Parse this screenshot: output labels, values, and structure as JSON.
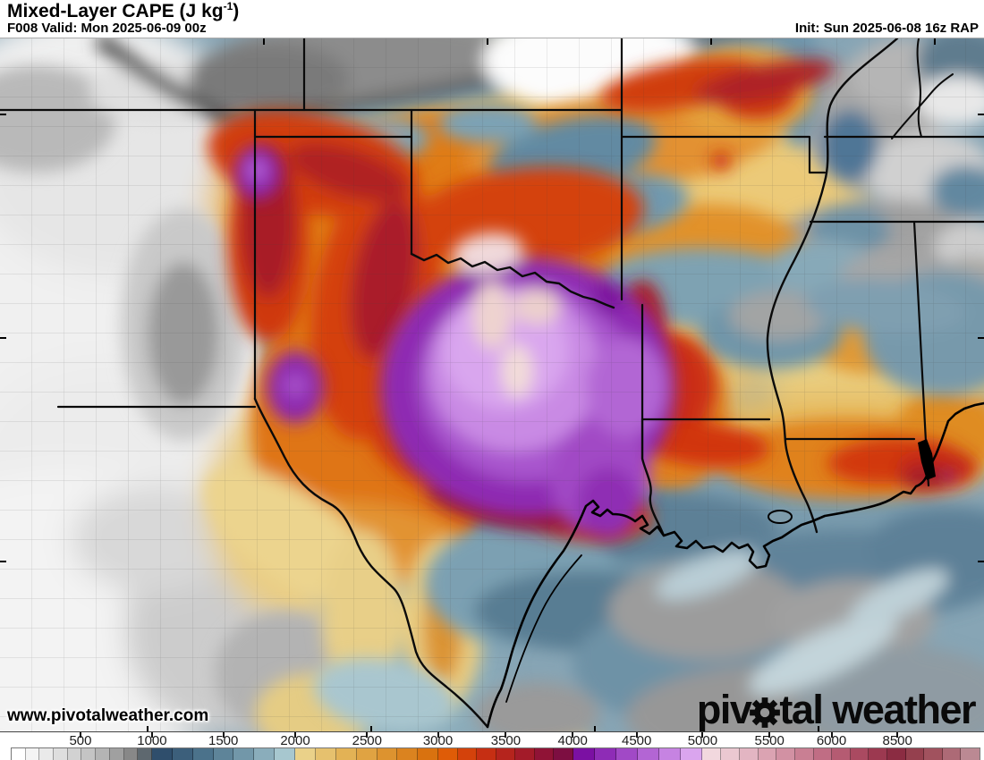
{
  "header": {
    "title_prefix": "Mixed-Layer CAPE (J kg",
    "title_exponent": "-1",
    "title_suffix": ")",
    "valid_label": "F008 Valid: Mon 2025-06-09 00z",
    "init_label": "Init: Sun 2025-06-08 16z RAP"
  },
  "watermark": "www.pivotalweather.com",
  "logo": {
    "text_before_gear": "piv",
    "text_after_gear": "tal weather"
  },
  "map": {
    "description": "Filled mixed-layer CAPE contours over the south-central United States; peak values (pink/violet, 5000+ J/kg) over north Texas and southern Oklahoma, gray low values over New Mexico and the Gulf, orange band across Kansas, Arkansas, Louisiana and Mississippi."
  },
  "colorbar": {
    "ticks": [
      {
        "label": "500",
        "pos": 8.18
      },
      {
        "label": "1000",
        "pos": 15.45
      },
      {
        "label": "1500",
        "pos": 22.7
      },
      {
        "label": "2000",
        "pos": 30.0
      },
      {
        "label": "2500",
        "pos": 37.3
      },
      {
        "label": "3000",
        "pos": 44.5
      },
      {
        "label": "3500",
        "pos": 51.4
      },
      {
        "label": "4000",
        "pos": 58.2
      },
      {
        "label": "4500",
        "pos": 64.7
      },
      {
        "label": "5000",
        "pos": 71.4
      },
      {
        "label": "5500",
        "pos": 78.2
      },
      {
        "label": "6000",
        "pos": 84.5
      },
      {
        "label": "8500",
        "pos": 91.2
      }
    ],
    "groups": [
      {
        "width": 14.5,
        "colors": [
          "#ffffff",
          "#f4f4f4",
          "#eaeaea",
          "#dedede",
          "#d2d2d2",
          "#c4c4c4",
          "#b4b4b4",
          "#a0a0a0",
          "#888888",
          "#5e686f"
        ]
      },
      {
        "width": 14.8,
        "colors": [
          "#2f4e6c",
          "#3c5f7b",
          "#4b728b",
          "#5e8499",
          "#7297a9",
          "#8aadbb",
          "#a7c7cf"
        ]
      },
      {
        "width": 14.8,
        "colors": [
          "#ead189",
          "#e6c16e",
          "#e3b255",
          "#e0a342",
          "#dd932f",
          "#db831f",
          "#d9720f"
        ]
      },
      {
        "width": 13.9,
        "colors": [
          "#df5c07",
          "#d4420b",
          "#c62f13",
          "#b5241d",
          "#a31b29",
          "#901336",
          "#7d0e41"
        ]
      },
      {
        "width": 13.4,
        "colors": [
          "#7b10a3",
          "#8e2cb6",
          "#a149c6",
          "#b365d4",
          "#c683e2",
          "#daa5ee"
        ]
      },
      {
        "width": 13.4,
        "colors": [
          "#f2d8de",
          "#ebc8d1",
          "#e3b5c2",
          "#dba3b2",
          "#d291a3",
          "#c97f93",
          "#c06d84"
        ]
      },
      {
        "width": 15.2,
        "colors": [
          "#b55b72",
          "#aa4a61",
          "#9c3950",
          "#8b2c42",
          "#95404e",
          "#a1525e",
          "#ad6a76",
          "#bb8993"
        ]
      }
    ]
  }
}
